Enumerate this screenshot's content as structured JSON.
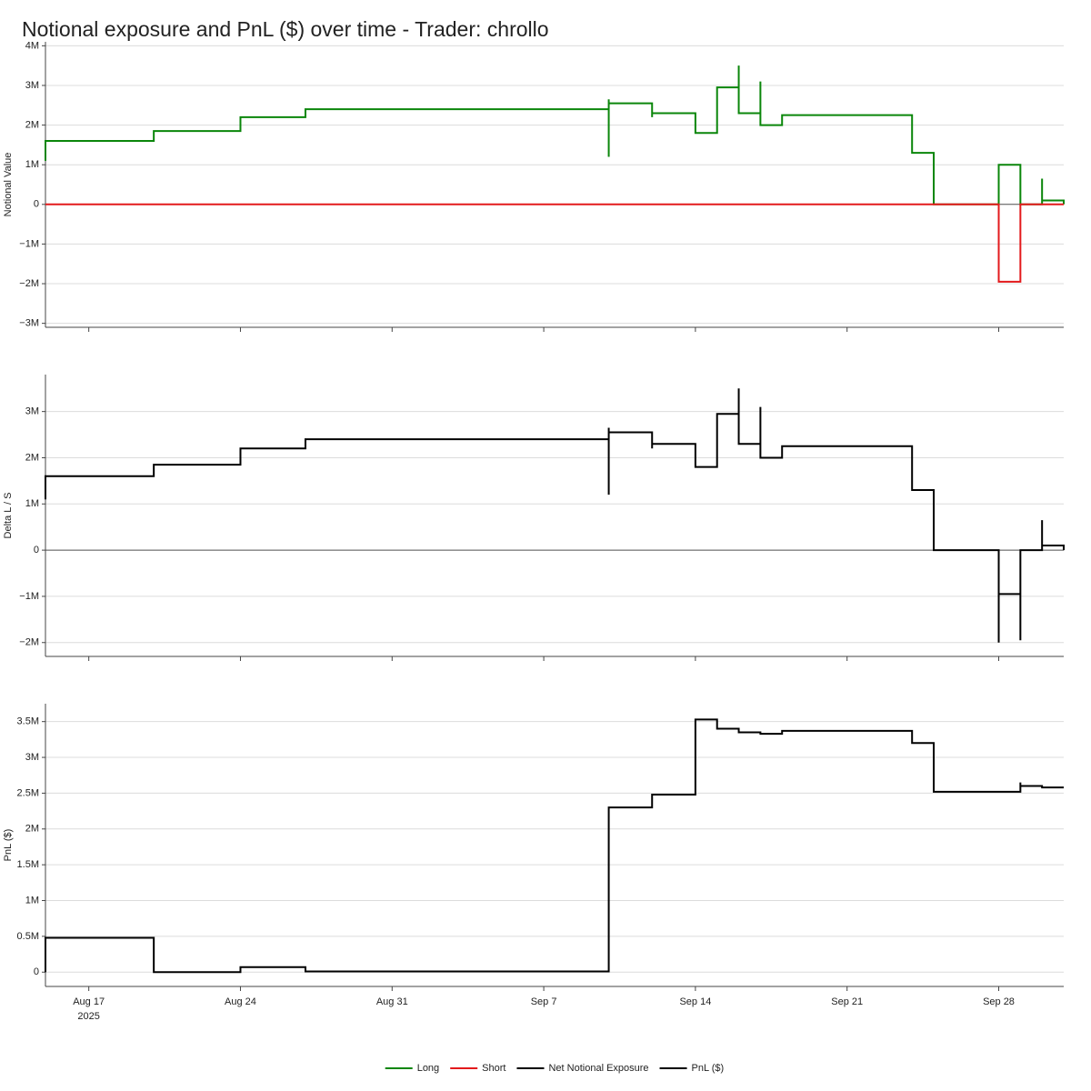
{
  "title": "Notional exposure and PnL ($) over time - Trader: chrollo",
  "chart_data": [
    {
      "type": "line",
      "ylabel": "Notional Value",
      "grid": true,
      "zeroline": true,
      "xlim": [
        "2025-08-15",
        "2025-10-01"
      ],
      "xticks": [
        "2025-08-17",
        "2025-08-24",
        "2025-08-31",
        "2025-09-07",
        "2025-09-14",
        "2025-09-21",
        "2025-09-28"
      ],
      "ylim": [
        -3100000,
        4100000
      ],
      "yticks": [
        {
          "value": 4000000,
          "label": "4M"
        },
        {
          "value": 3000000,
          "label": "3M"
        },
        {
          "value": 2000000,
          "label": "2M"
        },
        {
          "value": 1000000,
          "label": "1M"
        },
        0,
        {
          "value": -1000000,
          "label": "−1M"
        },
        {
          "value": -2000000,
          "label": "−2M"
        },
        {
          "value": -3000000,
          "label": "−3M"
        }
      ],
      "series": [
        {
          "name": "Long",
          "color": "#0a860a",
          "x": [
            "2025-08-15",
            "2025-08-15",
            "2025-08-20",
            "2025-08-20",
            "2025-08-24",
            "2025-08-24",
            "2025-08-27",
            "2025-08-27",
            "2025-09-10",
            "2025-09-10",
            "2025-09-10",
            "2025-09-10",
            "2025-09-12",
            "2025-09-12",
            "2025-09-12",
            "2025-09-14",
            "2025-09-14",
            "2025-09-15",
            "2025-09-15",
            "2025-09-16",
            "2025-09-16",
            "2025-09-16",
            "2025-09-17",
            "2025-09-17",
            "2025-09-17",
            "2025-09-18",
            "2025-09-18",
            "2025-09-24",
            "2025-09-24",
            "2025-09-25",
            "2025-09-25",
            "2025-09-28",
            "2025-09-28",
            "2025-09-29",
            "2025-09-29",
            "2025-09-30",
            "2025-09-30",
            "2025-09-30",
            "2025-10-01",
            "2025-10-01"
          ],
          "values": [
            1100000,
            1600000,
            1600000,
            1850000,
            1850000,
            2200000,
            2200000,
            2400000,
            2400000,
            1200000,
            2650000,
            2550000,
            2550000,
            2200000,
            2300000,
            2300000,
            1800000,
            1800000,
            2950000,
            2950000,
            3500000,
            2300000,
            2300000,
            3100000,
            2000000,
            2000000,
            2250000,
            2250000,
            1300000,
            1300000,
            0,
            0,
            1000000,
            1000000,
            0,
            0,
            650000,
            100000,
            100000,
            0
          ]
        },
        {
          "name": "Short",
          "color": "#e31a1c",
          "x": [
            "2025-08-15",
            "2025-09-28",
            "2025-09-28",
            "2025-09-29",
            "2025-09-29",
            "2025-10-01"
          ],
          "values": [
            0,
            0,
            -1950000,
            -1950000,
            0,
            0
          ]
        }
      ]
    },
    {
      "type": "line",
      "ylabel": "Delta L / S",
      "grid": true,
      "zeroline": true,
      "xlim": [
        "2025-08-15",
        "2025-10-01"
      ],
      "xticks": [
        "2025-08-17",
        "2025-08-24",
        "2025-08-31",
        "2025-09-07",
        "2025-09-14",
        "2025-09-21",
        "2025-09-28"
      ],
      "ylim": [
        -2300000,
        3800000
      ],
      "yticks": [
        {
          "value": 3000000,
          "label": "3M"
        },
        {
          "value": 2000000,
          "label": "2M"
        },
        {
          "value": 1000000,
          "label": "1M"
        },
        0,
        {
          "value": -1000000,
          "label": "−1M"
        },
        {
          "value": -2000000,
          "label": "−2M"
        }
      ],
      "series": [
        {
          "name": "Net Notional Exposure",
          "color": "#000000",
          "x": [
            "2025-08-15",
            "2025-08-15",
            "2025-08-20",
            "2025-08-20",
            "2025-08-24",
            "2025-08-24",
            "2025-08-27",
            "2025-08-27",
            "2025-09-10",
            "2025-09-10",
            "2025-09-10",
            "2025-09-10",
            "2025-09-12",
            "2025-09-12",
            "2025-09-12",
            "2025-09-14",
            "2025-09-14",
            "2025-09-15",
            "2025-09-15",
            "2025-09-16",
            "2025-09-16",
            "2025-09-16",
            "2025-09-17",
            "2025-09-17",
            "2025-09-17",
            "2025-09-18",
            "2025-09-18",
            "2025-09-24",
            "2025-09-24",
            "2025-09-25",
            "2025-09-25",
            "2025-09-28",
            "2025-09-28",
            "2025-09-28",
            "2025-09-29",
            "2025-09-29",
            "2025-09-29",
            "2025-09-30",
            "2025-09-30",
            "2025-09-30",
            "2025-10-01",
            "2025-10-01"
          ],
          "values": [
            1100000,
            1600000,
            1600000,
            1850000,
            1850000,
            2200000,
            2200000,
            2400000,
            2400000,
            1200000,
            2650000,
            2550000,
            2550000,
            2200000,
            2300000,
            2300000,
            1800000,
            1800000,
            2950000,
            2950000,
            3500000,
            2300000,
            2300000,
            3100000,
            2000000,
            2000000,
            2250000,
            2250000,
            1300000,
            1300000,
            0,
            0,
            -2000000,
            -950000,
            -950000,
            -1950000,
            0,
            0,
            650000,
            100000,
            100000,
            0
          ]
        }
      ]
    },
    {
      "type": "line",
      "ylabel": "PnL ($)",
      "grid": true,
      "zeroline": false,
      "xlim": [
        "2025-08-15",
        "2025-10-01"
      ],
      "xticks": [
        {
          "value": "2025-08-17",
          "label": "Aug 17"
        },
        {
          "value": "2025-08-24",
          "label": "Aug 24"
        },
        {
          "value": "2025-08-31",
          "label": "Aug 31"
        },
        {
          "value": "2025-09-07",
          "label": "Sep 7"
        },
        {
          "value": "2025-09-14",
          "label": "Sep 14"
        },
        {
          "value": "2025-09-21",
          "label": "Sep 21"
        },
        {
          "value": "2025-09-28",
          "label": "Sep 28"
        }
      ],
      "year_label": "2025",
      "ylim": [
        -200000,
        3750000
      ],
      "yticks": [
        0,
        {
          "value": 500000,
          "label": "0.5M"
        },
        {
          "value": 1000000,
          "label": "1M"
        },
        {
          "value": 1500000,
          "label": "1.5M"
        },
        {
          "value": 2000000,
          "label": "2M"
        },
        {
          "value": 2500000,
          "label": "2.5M"
        },
        {
          "value": 3000000,
          "label": "3M"
        },
        {
          "value": 3500000,
          "label": "3.5M"
        }
      ],
      "series": [
        {
          "name": "PnL ($)",
          "color": "#000000",
          "x": [
            "2025-08-15",
            "2025-08-15",
            "2025-08-20",
            "2025-08-20",
            "2025-08-24",
            "2025-08-24",
            "2025-08-27",
            "2025-08-27",
            "2025-09-10",
            "2025-09-10",
            "2025-09-10",
            "2025-09-12",
            "2025-09-12",
            "2025-09-14",
            "2025-09-14",
            "2025-09-14",
            "2025-09-15",
            "2025-09-15",
            "2025-09-16",
            "2025-09-16",
            "2025-09-17",
            "2025-09-17",
            "2025-09-18",
            "2025-09-18",
            "2025-09-24",
            "2025-09-24",
            "2025-09-25",
            "2025-09-25",
            "2025-09-29",
            "2025-09-29",
            "2025-09-29",
            "2025-09-30",
            "2025-09-30",
            "2025-10-01"
          ],
          "values": [
            0,
            480000,
            480000,
            0,
            0,
            70000,
            70000,
            10000,
            10000,
            2200000,
            2300000,
            2300000,
            2480000,
            2480000,
            3280000,
            3530000,
            3530000,
            3400000,
            3400000,
            3350000,
            3350000,
            3330000,
            3330000,
            3370000,
            3370000,
            3200000,
            3200000,
            2520000,
            2520000,
            2650000,
            2600000,
            2600000,
            2580000,
            2580000
          ]
        }
      ]
    }
  ]
}
